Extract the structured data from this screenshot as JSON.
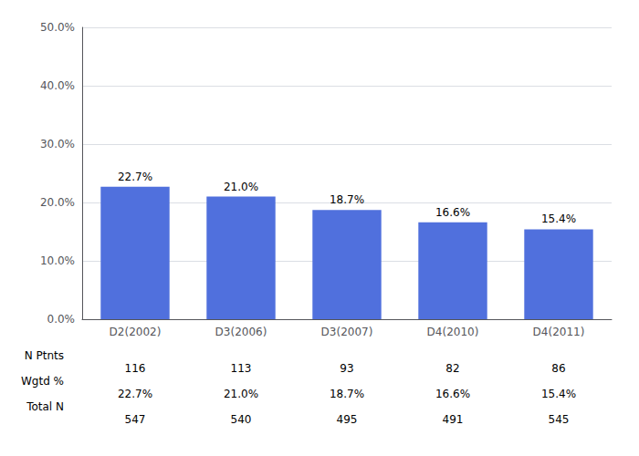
{
  "chart_data": {
    "type": "bar",
    "categories": [
      "D2(2002)",
      "D3(2006)",
      "D3(2007)",
      "D4(2010)",
      "D4(2011)"
    ],
    "values": [
      22.7,
      21.0,
      18.7,
      16.6,
      15.4
    ],
    "value_labels": [
      "22.7%",
      "21.0%",
      "18.7%",
      "16.6%",
      "15.4%"
    ],
    "data_labels": true,
    "ylim": [
      0,
      50
    ],
    "yticks": [
      {
        "value": 0,
        "label": "0.0%"
      },
      {
        "value": 10,
        "label": "10.0%"
      },
      {
        "value": 20,
        "label": "20.0%"
      },
      {
        "value": 30,
        "label": "30.0%"
      },
      {
        "value": 40,
        "label": "40.0%"
      },
      {
        "value": 50,
        "label": "50.0%"
      }
    ],
    "grid": true,
    "table_rows": [
      {
        "label": "N Ptnts",
        "values": [
          116,
          113,
          93,
          82,
          86
        ]
      },
      {
        "label": "Wgtd %",
        "values": [
          22.7,
          21.0,
          18.7,
          16.6,
          15.4
        ],
        "value_labels": [
          "22.7%",
          "21.0%",
          "18.7%",
          "16.6%",
          "15.4%"
        ]
      },
      {
        "label": "Total N",
        "values": [
          547,
          540,
          495,
          491,
          545
        ]
      }
    ]
  }
}
